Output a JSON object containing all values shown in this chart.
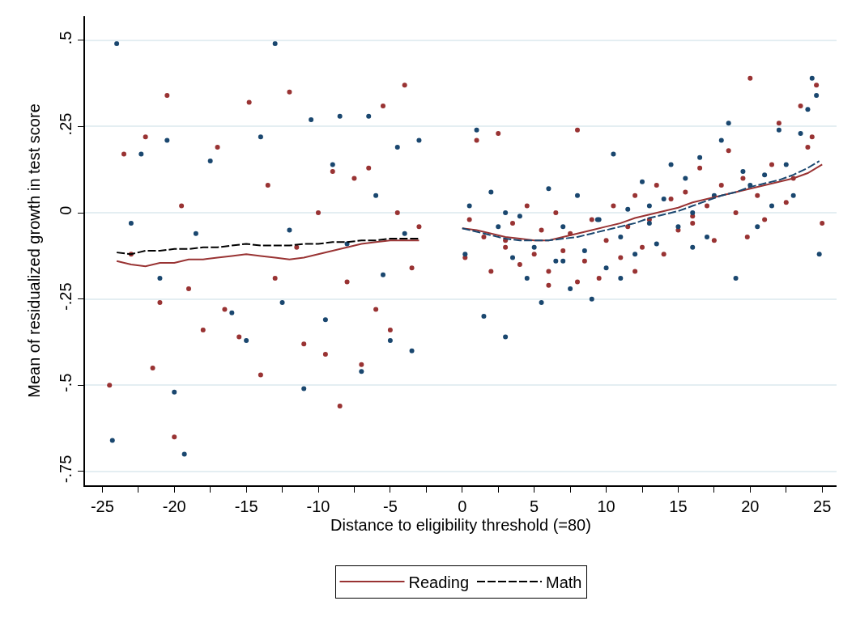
{
  "chart_data": {
    "type": "scatter",
    "xlabel": "Distance to eligibility threshold (=80)",
    "ylabel": "Mean of residualized growth in test score",
    "xlim": [
      -26.2,
      26
    ],
    "ylim": [
      -0.79,
      0.57
    ],
    "xticks": [
      -25,
      {
        "value": -22.5,
        "label": null
      },
      -20,
      {
        "value": -17.5,
        "label": null
      },
      -15,
      {
        "value": -12.5,
        "label": null
      },
      -10,
      {
        "value": -7.5,
        "label": null
      },
      -5,
      {
        "value": -2.5,
        "label": null
      },
      0,
      {
        "value": 2.5,
        "label": null
      },
      5,
      {
        "value": 7.5,
        "label": null
      },
      10,
      {
        "value": 12.5,
        "label": null
      },
      15,
      {
        "value": 17.5,
        "label": null
      },
      20,
      {
        "value": 22.5,
        "label": null
      },
      25
    ],
    "yticks": [
      {
        "value": 0.5,
        "label": ".5"
      },
      {
        "value": 0.25,
        "label": ".25"
      },
      0,
      {
        "value": -0.25,
        "label": "-.25"
      },
      {
        "value": -0.5,
        "label": "-.5"
      },
      {
        "value": -0.75,
        "label": "-.75"
      }
    ],
    "grid": "y",
    "legend": "bottom",
    "series": [
      {
        "marker": "circle",
        "color": "#993333",
        "x": [
          -24.5,
          -23.5,
          -23,
          -22,
          -21.5,
          -21,
          -20.5,
          -20,
          -19.5,
          -19,
          -18,
          -17,
          -16.5,
          -15.5,
          -14.8,
          -14,
          -13.5,
          -13,
          -12,
          -11.5,
          -11,
          -10,
          -9.5,
          -9,
          -8.5,
          -8,
          -7.5,
          -7,
          -6.5,
          -6,
          -5.5,
          -5,
          -4.5,
          -4,
          -3.5,
          -3
        ],
        "values": [
          -0.5,
          0.17,
          -0.12,
          0.22,
          -0.45,
          -0.26,
          0.34,
          -0.65,
          0.02,
          -0.22,
          -0.34,
          0.19,
          -0.28,
          -0.36,
          0.32,
          -0.47,
          0.08,
          -0.19,
          0.35,
          -0.1,
          -0.38,
          0.0,
          -0.41,
          0.12,
          -0.56,
          -0.2,
          0.1,
          -0.44,
          0.13,
          -0.28,
          0.31,
          -0.34,
          0.0,
          0.37,
          -0.16,
          -0.04
        ]
      },
      {
        "marker": "circle",
        "color": "#1a476f",
        "x": [
          -24,
          -24.3,
          -23,
          -22.3,
          -21,
          -20.5,
          -20,
          -19.3,
          -18.5,
          -17.5,
          -16,
          -15,
          -14,
          -13,
          -12.5,
          -12,
          -11,
          -10.5,
          -9.5,
          -9,
          -8.5,
          -8,
          -7,
          -6.5,
          -6,
          -5.5,
          -5,
          -4.5,
          -4,
          -3.5,
          -3
        ],
        "values": [
          0.49,
          -0.66,
          -0.03,
          0.17,
          -0.19,
          0.21,
          -0.52,
          -0.7,
          -0.06,
          0.15,
          -0.29,
          -0.37,
          0.22,
          0.49,
          -0.26,
          -0.05,
          -0.51,
          0.27,
          -0.31,
          0.14,
          0.28,
          -0.09,
          -0.46,
          0.28,
          0.05,
          -0.18,
          -0.37,
          0.19,
          -0.06,
          -0.4,
          0.21
        ]
      },
      {
        "marker": "circle",
        "color": "#993333",
        "x": [
          0.2,
          0.5,
          1,
          1.5,
          2,
          2.5,
          3,
          3.5,
          4,
          4.5,
          5,
          5.5,
          6,
          6.5,
          7,
          7.5,
          8,
          8.5,
          9,
          9.5,
          10,
          10.5,
          11,
          11.5,
          12,
          12.5,
          13,
          13.5,
          14,
          14.5,
          15,
          15.5,
          16,
          16.5,
          17,
          17.5,
          18,
          18.5,
          19,
          19.5,
          20,
          20.5,
          21,
          21.5,
          22,
          22.5,
          23,
          23.5,
          24,
          24.3,
          24.6,
          25,
          19.8,
          12,
          6,
          3,
          8,
          16
        ],
        "values": [
          -0.13,
          -0.02,
          0.21,
          -0.07,
          -0.17,
          0.23,
          -0.1,
          -0.03,
          -0.15,
          0.02,
          -0.12,
          -0.05,
          -0.17,
          0.0,
          -0.11,
          -0.06,
          0.24,
          -0.14,
          -0.02,
          -0.19,
          -0.08,
          0.02,
          -0.13,
          -0.04,
          0.05,
          -0.1,
          -0.02,
          0.08,
          -0.12,
          0.04,
          -0.05,
          0.06,
          -0.03,
          0.13,
          0.02,
          -0.08,
          0.08,
          0.18,
          0.0,
          0.1,
          0.39,
          0.05,
          -0.02,
          0.14,
          0.26,
          0.03,
          0.1,
          0.31,
          0.19,
          0.22,
          0.37,
          -0.03,
          -0.07,
          -0.17,
          -0.21,
          -0.08,
          -0.2,
          -0.01
        ]
      },
      {
        "marker": "circle",
        "color": "#1a476f",
        "x": [
          0.2,
          0.5,
          1,
          1.5,
          2,
          2.5,
          3,
          3.5,
          4,
          4.5,
          5,
          5.5,
          6,
          6.5,
          7,
          7.5,
          8,
          8.5,
          9,
          9.5,
          10,
          10.5,
          11,
          11.5,
          12,
          12.5,
          13,
          13.5,
          14,
          14.5,
          15,
          15.5,
          16,
          16.5,
          17,
          17.5,
          18,
          18.5,
          19,
          19.5,
          20,
          20.5,
          21,
          21.5,
          22,
          22.5,
          23,
          23.5,
          24,
          24.3,
          24.6,
          24.8,
          9.4,
          13,
          16,
          11,
          7,
          3
        ],
        "values": [
          -0.12,
          0.02,
          0.24,
          -0.3,
          0.06,
          -0.04,
          -0.36,
          -0.13,
          -0.01,
          -0.19,
          -0.1,
          -0.26,
          0.07,
          -0.14,
          -0.04,
          -0.22,
          0.05,
          -0.11,
          -0.25,
          -0.02,
          -0.16,
          0.17,
          -0.07,
          0.01,
          -0.12,
          0.09,
          -0.03,
          -0.09,
          0.04,
          0.14,
          -0.04,
          0.1,
          0.0,
          0.16,
          -0.07,
          0.05,
          0.21,
          0.26,
          -0.19,
          0.12,
          0.08,
          -0.04,
          0.11,
          0.02,
          0.24,
          0.14,
          0.05,
          0.23,
          0.3,
          0.39,
          0.34,
          -0.12,
          -0.02,
          0.02,
          -0.1,
          -0.19,
          -0.14,
          0.0
        ]
      },
      {
        "type": "line",
        "name": "Reading",
        "marker": "none",
        "line_style": "solid",
        "color": "#993333",
        "x": [
          -24,
          -23,
          -22,
          -21,
          -20,
          -19,
          -18,
          -17,
          -16,
          -15,
          -14,
          -13,
          -12,
          -11,
          -10,
          -9,
          -8,
          -7,
          -6,
          -5,
          -4,
          -3
        ],
        "values": [
          -0.14,
          -0.15,
          -0.155,
          -0.145,
          -0.145,
          -0.135,
          -0.135,
          -0.13,
          -0.125,
          -0.12,
          -0.125,
          -0.13,
          -0.135,
          -0.13,
          -0.12,
          -0.11,
          -0.1,
          -0.09,
          -0.085,
          -0.08,
          -0.08,
          -0.08
        ]
      },
      {
        "type": "line",
        "name": "Math",
        "marker": "none",
        "line_style": "dashed",
        "color": "#000000",
        "x": [
          -24,
          -23,
          -22,
          -21,
          -20,
          -19,
          -18,
          -17,
          -16,
          -15,
          -14,
          -13,
          -12,
          -11,
          -10,
          -9,
          -8,
          -7,
          -6,
          -5,
          -4,
          -3
        ],
        "values": [
          -0.115,
          -0.12,
          -0.11,
          -0.11,
          -0.105,
          -0.105,
          -0.1,
          -0.1,
          -0.095,
          -0.09,
          -0.095,
          -0.095,
          -0.095,
          -0.09,
          -0.09,
          -0.085,
          -0.085,
          -0.08,
          -0.08,
          -0.075,
          -0.075,
          -0.075
        ]
      },
      {
        "type": "line",
        "marker": "none",
        "line_style": "dashed",
        "color": "#1a476f",
        "x": [
          0,
          1,
          2,
          3,
          4,
          5,
          6,
          7,
          8,
          9,
          10,
          11,
          12,
          13,
          14,
          15,
          16,
          17,
          18,
          19,
          20,
          21,
          22,
          23,
          24,
          24.8
        ],
        "values": [
          -0.045,
          -0.055,
          -0.065,
          -0.075,
          -0.08,
          -0.08,
          -0.08,
          -0.075,
          -0.07,
          -0.06,
          -0.05,
          -0.04,
          -0.03,
          -0.015,
          -0.005,
          0.005,
          0.02,
          0.035,
          0.05,
          0.06,
          0.075,
          0.085,
          0.095,
          0.11,
          0.13,
          0.15
        ]
      },
      {
        "type": "line",
        "marker": "none",
        "line_style": "solid",
        "color": "#993333",
        "x": [
          0,
          1,
          2,
          3,
          4,
          5,
          6,
          7,
          8,
          9,
          10,
          11,
          12,
          13,
          14,
          15,
          16,
          17,
          18,
          19,
          20,
          21,
          22,
          23,
          24,
          25
        ],
        "values": [
          -0.045,
          -0.05,
          -0.06,
          -0.07,
          -0.075,
          -0.08,
          -0.08,
          -0.07,
          -0.06,
          -0.05,
          -0.04,
          -0.03,
          -0.015,
          -0.005,
          0.005,
          0.015,
          0.03,
          0.04,
          0.05,
          0.06,
          0.07,
          0.08,
          0.09,
          0.1,
          0.115,
          0.14
        ]
      }
    ]
  }
}
